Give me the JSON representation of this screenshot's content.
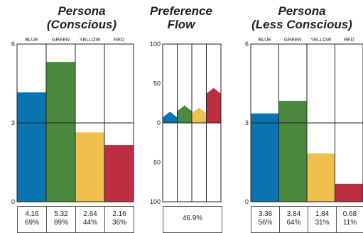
{
  "colors": {
    "blue": "#0a74b0",
    "green": "#4b8a3e",
    "yellow": "#f0c04e",
    "red": "#bd2d3f"
  },
  "titles": {
    "left_1": "Persona",
    "left_2": "(Conscious)",
    "middle_1": "Preference",
    "middle_2": "Flow",
    "right_1": "Persona",
    "right_2": "(Less Conscious)"
  },
  "chart_data": [
    {
      "type": "bar",
      "title": "Persona (Conscious)",
      "categories": [
        "BLUE",
        "GREEN",
        "YELLOW",
        "RED"
      ],
      "values": [
        4.16,
        5.32,
        2.64,
        2.16
      ],
      "percent_labels": [
        "69%",
        "89%",
        "44%",
        "36%"
      ],
      "value_labels": [
        "4.16",
        "5.32",
        "2.64",
        "2.16"
      ],
      "yticks": [
        "0",
        "3",
        "6"
      ],
      "ylim": [
        0,
        6
      ],
      "midline": 3
    },
    {
      "type": "bar",
      "title": "Preference Flow",
      "categories": [
        "BLUE",
        "GREEN",
        "YELLOW",
        "RED"
      ],
      "values": [
        7,
        15,
        12,
        37
      ],
      "yticks": [
        "100",
        "50",
        "0",
        "50",
        "100"
      ],
      "ylim": [
        -100,
        100
      ],
      "summary_label": "46.9%"
    },
    {
      "type": "bar",
      "title": "Persona (Less Conscious)",
      "categories": [
        "BLUE",
        "GREEN",
        "YELLOW",
        "RED"
      ],
      "values": [
        3.36,
        3.84,
        1.84,
        0.68
      ],
      "percent_labels": [
        "56%",
        "64%",
        "31%",
        "11%"
      ],
      "value_labels": [
        "3.36",
        "3.84",
        "1.84",
        "0.68"
      ],
      "yticks": [
        "0",
        "3",
        "6"
      ],
      "ylim": [
        0,
        6
      ],
      "midline": 3
    }
  ]
}
